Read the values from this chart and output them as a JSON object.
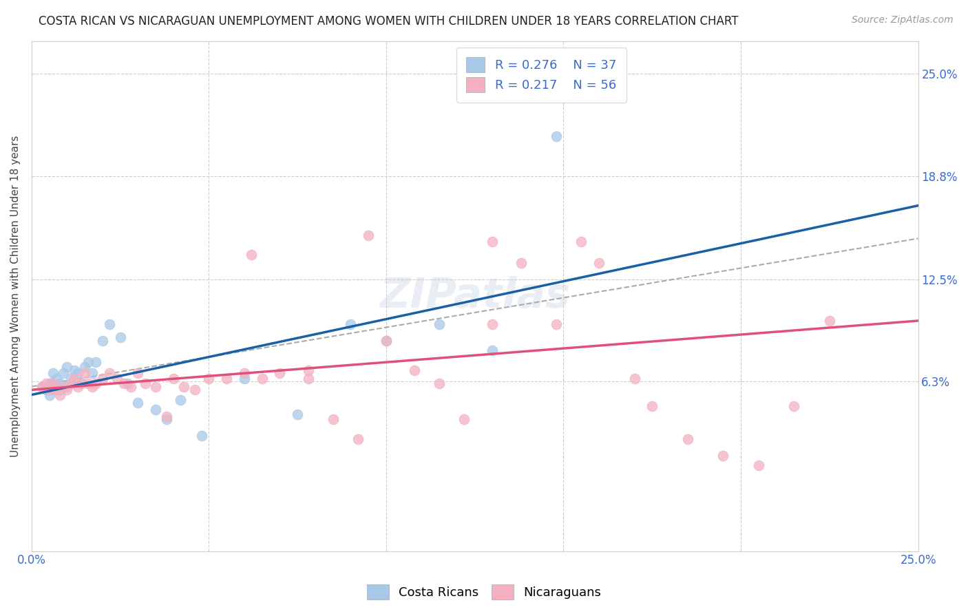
{
  "title": "COSTA RICAN VS NICARAGUAN UNEMPLOYMENT AMONG WOMEN WITH CHILDREN UNDER 18 YEARS CORRELATION CHART",
  "source": "Source: ZipAtlas.com",
  "ylabel": "Unemployment Among Women with Children Under 18 years",
  "xlim": [
    0.0,
    0.25
  ],
  "ylim": [
    -0.04,
    0.27
  ],
  "ytick_right_labels": [
    "6.3%",
    "12.5%",
    "18.8%",
    "25.0%"
  ],
  "ytick_right_values": [
    0.063,
    0.125,
    0.188,
    0.25
  ],
  "cr_R": "0.276",
  "cr_N": "37",
  "ni_R": "0.217",
  "ni_N": "56",
  "cr_color": "#a8c8e8",
  "ni_color": "#f4b0c0",
  "cr_line_color": "#1a5fa8",
  "ni_line_color": "#e0507a",
  "trend_line_color": "#aaaaaa",
  "background_color": "#ffffff",
  "grid_color": "#cccccc",
  "cr_line_start_y": 0.055,
  "cr_line_end_y": 0.17,
  "ni_line_start_y": 0.058,
  "ni_line_end_y": 0.1,
  "dash_line_start_y": 0.06,
  "dash_line_end_y": 0.15,
  "cr_x": [
    0.003,
    0.004,
    0.005,
    0.005,
    0.006,
    0.006,
    0.007,
    0.007,
    0.008,
    0.008,
    0.009,
    0.01,
    0.01,
    0.011,
    0.012,
    0.013,
    0.014,
    0.015,
    0.016,
    0.017,
    0.018,
    0.02,
    0.022,
    0.025,
    0.027,
    0.03,
    0.035,
    0.038,
    0.042,
    0.048,
    0.06,
    0.075,
    0.09,
    0.1,
    0.115,
    0.13,
    0.148
  ],
  "cr_y": [
    0.06,
    0.058,
    0.062,
    0.055,
    0.068,
    0.058,
    0.065,
    0.06,
    0.062,
    0.058,
    0.068,
    0.072,
    0.06,
    0.065,
    0.07,
    0.068,
    0.062,
    0.072,
    0.075,
    0.068,
    0.075,
    0.088,
    0.098,
    0.09,
    0.062,
    0.05,
    0.046,
    0.04,
    0.052,
    0.03,
    0.065,
    0.043,
    0.098,
    0.088,
    0.098,
    0.082,
    0.212
  ],
  "ni_x": [
    0.003,
    0.004,
    0.005,
    0.006,
    0.007,
    0.008,
    0.009,
    0.01,
    0.011,
    0.012,
    0.013,
    0.014,
    0.015,
    0.016,
    0.017,
    0.018,
    0.02,
    0.022,
    0.024,
    0.026,
    0.028,
    0.03,
    0.032,
    0.035,
    0.038,
    0.04,
    0.043,
    0.046,
    0.05,
    0.055,
    0.06,
    0.065,
    0.07,
    0.078,
    0.085,
    0.092,
    0.1,
    0.108,
    0.115,
    0.122,
    0.13,
    0.138,
    0.148,
    0.16,
    0.17,
    0.175,
    0.185,
    0.195,
    0.205,
    0.215,
    0.225,
    0.155,
    0.095,
    0.078,
    0.062,
    0.13
  ],
  "ni_y": [
    0.06,
    0.062,
    0.058,
    0.062,
    0.058,
    0.055,
    0.06,
    0.058,
    0.062,
    0.065,
    0.06,
    0.062,
    0.068,
    0.062,
    0.06,
    0.062,
    0.065,
    0.068,
    0.065,
    0.062,
    0.06,
    0.068,
    0.062,
    0.06,
    0.042,
    0.065,
    0.06,
    0.058,
    0.065,
    0.065,
    0.068,
    0.065,
    0.068,
    0.065,
    0.04,
    0.028,
    0.088,
    0.07,
    0.062,
    0.04,
    0.098,
    0.135,
    0.098,
    0.135,
    0.065,
    0.048,
    0.028,
    0.018,
    0.012,
    0.048,
    0.1,
    0.148,
    0.152,
    0.07,
    0.14,
    0.148
  ],
  "title_fontsize": 12,
  "axis_label_fontsize": 11,
  "tick_fontsize": 12,
  "legend_fontsize": 13,
  "source_fontsize": 10
}
